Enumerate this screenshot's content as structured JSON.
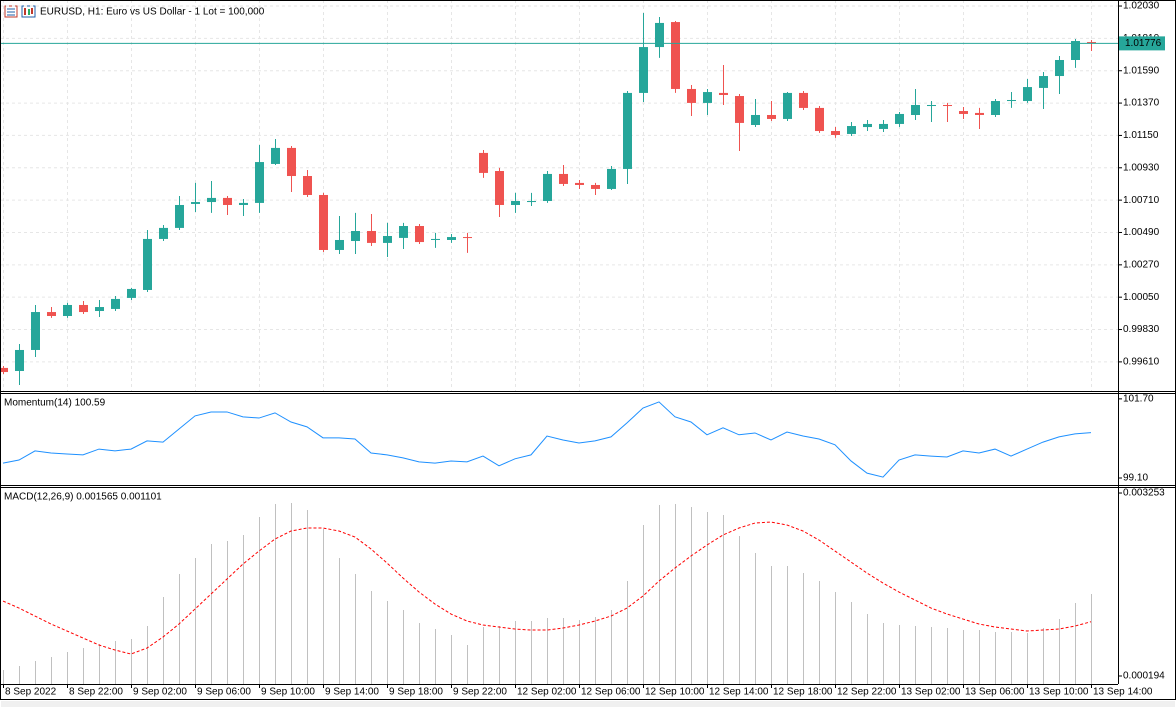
{
  "chart_data": [
    {
      "type": "candlestick",
      "title": "EURUSD, H1:  Euro vs US Dollar - 1 Lot = 100,000",
      "categories": [
        "8 Sep 2022",
        null,
        null,
        null,
        "8 Sep 22:00",
        null,
        null,
        null,
        "9 Sep 02:00",
        null,
        null,
        null,
        "9 Sep 06:00",
        null,
        null,
        null,
        "9 Sep 10:00",
        null,
        null,
        null,
        "9 Sep 14:00",
        null,
        null,
        null,
        "9 Sep 18:00",
        null,
        null,
        null,
        "9 Sep 22:00",
        null,
        null,
        null,
        "12 Sep 02:00",
        null,
        null,
        null,
        "12 Sep 06:00",
        null,
        null,
        null,
        "12 Sep 10:00",
        null,
        null,
        null,
        "12 Sep 14:00",
        null,
        null,
        null,
        "12 Sep 18:00",
        null,
        null,
        null,
        "12 Sep 22:00",
        null,
        null,
        null,
        "13 Sep 02:00",
        null,
        null,
        null,
        "13 Sep 06:00",
        null,
        null,
        null,
        "13 Sep 10:00",
        null,
        null,
        null,
        "13 Sep 14:00"
      ],
      "open": [
        0.99569,
        0.99548,
        0.99691,
        0.99949,
        0.99922,
        0.99997,
        0.99956,
        0.9997,
        1.00045,
        1.00099,
        1.00446,
        1.00521,
        1.00684,
        1.00697,
        1.00725,
        1.00677,
        1.00691,
        1.00956,
        1.01065,
        1.00874,
        1.00745,
        1.00371,
        1.00432,
        1.005,
        1.00419,
        1.00453,
        1.00534,
        1.00439,
        1.00439,
        1.00459,
        1.01031,
        1.00908,
        1.00677,
        1.00697,
        1.00704,
        1.00888,
        1.00827,
        1.00813,
        1.00786,
        1.00922,
        1.01439,
        1.01751,
        1.01921,
        1.01466,
        1.01371,
        1.01439,
        1.01418,
        1.01221,
        1.01289,
        1.01262,
        1.01439,
        1.01337,
        1.0118,
        1.0116,
        1.01207,
        1.01194,
        1.01228,
        1.01289,
        1.0135,
        1.01357,
        1.01316,
        1.01303,
        1.01289,
        1.01384,
        1.01384,
        1.01473,
        1.01554,
        1.01663,
        1.01785
      ],
      "high": [
        0.99582,
        0.99732,
        0.99997,
        0.99983,
        1.00011,
        1.00024,
        1.00031,
        1.00058,
        1.00113,
        1.00507,
        1.00541,
        1.00738,
        1.00827,
        1.0084,
        1.00738,
        1.00718,
        1.01085,
        1.01126,
        1.01078,
        1.00915,
        1.00759,
        1.00602,
        1.00623,
        1.00616,
        1.00555,
        1.00555,
        1.00548,
        1.00487,
        1.0048,
        1.00487,
        1.01051,
        1.00929,
        1.00759,
        1.00759,
        1.00908,
        1.00949,
        1.00847,
        1.00827,
        1.00942,
        1.01452,
        1.01983,
        1.01955,
        1.01928,
        1.01493,
        1.01466,
        1.01629,
        1.01432,
        1.01398,
        1.01384,
        1.01445,
        1.01452,
        1.0135,
        1.01207,
        1.01241,
        1.01255,
        1.01255,
        1.01309,
        1.01466,
        1.01384,
        1.01371,
        1.01343,
        1.01337,
        1.01398,
        1.01445,
        1.01534,
        1.01581,
        1.0169,
        1.01806,
        1.01799
      ],
      "low": [
        0.99528,
        0.99453,
        0.99643,
        0.99909,
        0.99909,
        0.99936,
        0.99915,
        0.99956,
        1.00031,
        1.00085,
        1.00432,
        1.00507,
        1.00629,
        1.00623,
        1.00609,
        1.00602,
        1.00623,
        1.00949,
        1.00765,
        1.00731,
        1.00357,
        1.00344,
        1.00344,
        1.00398,
        1.00323,
        1.00378,
        1.00412,
        1.00385,
        1.00419,
        1.00351,
        1.00861,
        1.00595,
        1.00623,
        1.0067,
        1.00691,
        1.00806,
        1.00786,
        1.00745,
        1.00779,
        1.0082,
        1.01377,
        1.01677,
        1.01439,
        1.01282,
        1.01289,
        1.01357,
        1.01044,
        1.01207,
        1.01248,
        1.01248,
        1.01323,
        1.01167,
        1.01133,
        1.01146,
        1.0118,
        1.01173,
        1.01207,
        1.01255,
        1.01241,
        1.01241,
        1.01262,
        1.01194,
        1.01275,
        1.01337,
        1.01371,
        1.0133,
        1.01432,
        1.01609,
        1.01724
      ],
      "close": [
        0.99541,
        0.99691,
        0.99949,
        0.99922,
        0.99997,
        0.99949,
        0.99983,
        1.00038,
        1.00106,
        1.00446,
        1.00521,
        1.00677,
        1.00697,
        1.00725,
        1.00677,
        1.00691,
        1.00969,
        1.01065,
        1.00874,
        1.00745,
        1.00371,
        1.00439,
        1.005,
        1.00419,
        1.00466,
        1.00534,
        1.00425,
        1.00446,
        1.00459,
        1.00453,
        1.00895,
        1.00677,
        1.00704,
        1.00704,
        1.00888,
        1.0082,
        1.00813,
        1.00786,
        1.00922,
        1.01439,
        1.01751,
        1.01915,
        1.01466,
        1.01371,
        1.01445,
        1.01425,
        1.01235,
        1.01289,
        1.01262,
        1.01439,
        1.01337,
        1.0118,
        1.01153,
        1.01214,
        1.01228,
        1.01228,
        1.01296,
        1.01357,
        1.01357,
        1.0135,
        1.01296,
        1.01289,
        1.01384,
        1.01391,
        1.01479,
        1.01554,
        1.01663,
        1.01792,
        1.01776
      ],
      "up_color": "#26a69a",
      "down_color": "#ef5350",
      "current_price": 1.01776,
      "price_line_color": "#26a69a",
      "ylim": [
        0.99412,
        1.02071
      ],
      "yticks": [
        {
          "value": 1.0203,
          "label": "1.02030"
        },
        {
          "value": 1.0181,
          "label": "1.01810"
        },
        {
          "value": 1.0159,
          "label": "1.01590"
        },
        {
          "value": 1.0137,
          "label": "1.01370"
        },
        {
          "value": 1.0115,
          "label": "1.01150"
        },
        {
          "value": 1.0093,
          "label": "1.00930"
        },
        {
          "value": 1.0071,
          "label": "1.00710"
        },
        {
          "value": 1.0049,
          "label": "1.00490"
        },
        {
          "value": 1.0027,
          "label": "1.00270"
        },
        {
          "value": 1.0005,
          "label": "1.00050"
        },
        {
          "value": 0.9983,
          "label": "0.99830"
        },
        {
          "value": 0.9961,
          "label": "0.99610"
        }
      ],
      "grid": true
    },
    {
      "type": "line",
      "title": "Momentum(14) 100.59",
      "values": [
        99.59,
        99.69,
        99.99,
        99.92,
        99.89,
        99.86,
        100.05,
        99.99,
        100.05,
        100.32,
        100.28,
        100.71,
        101.14,
        101.27,
        101.27,
        101.11,
        101.07,
        101.24,
        100.94,
        100.78,
        100.42,
        100.42,
        100.38,
        99.92,
        99.86,
        99.76,
        99.63,
        99.59,
        99.66,
        99.63,
        99.82,
        99.5,
        99.73,
        99.86,
        100.48,
        100.35,
        100.25,
        100.32,
        100.45,
        100.91,
        101.4,
        101.6,
        101.11,
        100.94,
        100.52,
        100.75,
        100.52,
        100.58,
        100.35,
        100.61,
        100.48,
        100.38,
        100.19,
        99.66,
        99.26,
        99.13,
        99.69,
        99.86,
        99.82,
        99.79,
        99.99,
        99.92,
        100.05,
        99.82,
        100.05,
        100.28,
        100.45,
        100.55,
        100.59
      ],
      "color": "#1e90ff",
      "ylim": [
        98.87,
        101.86
      ],
      "yticks": [
        {
          "value": 101.7,
          "label": "101.70"
        },
        {
          "value": 99.1,
          "label": "99.10"
        }
      ]
    },
    {
      "type": "macd",
      "title": "MACD(12,26,9) 0.001565 0.001101",
      "histogram": [
        0.000294,
        0.00036,
        0.000444,
        0.000511,
        0.000595,
        0.000661,
        0.000728,
        0.000778,
        0.000812,
        0.001029,
        0.001514,
        0.001899,
        0.002166,
        0.0024,
        0.00245,
        0.002551,
        0.002852,
        0.003069,
        0.003086,
        0.002969,
        0.002651,
        0.002166,
        0.001899,
        0.001614,
        0.001447,
        0.001297,
        0.001079,
        0.000979,
        0.000879,
        0.000712,
        0.001013,
        0.001029,
        0.001113,
        0.001113,
        0.001163,
        0.001163,
        0.00113,
        0.00118,
        0.001297,
        0.001782,
        0.002718,
        0.003052,
        0.003069,
        0.003019,
        0.002935,
        0.002885,
        0.002534,
        0.00225,
        0.002032,
        0.002032,
        0.001915,
        0.001782,
        0.001598,
        0.001431,
        0.00123,
        0.001079,
        0.001046,
        0.001029,
        0.001013,
        0.000996,
        0.000962,
        0.000962,
        0.000929,
        0.000929,
        0.000912,
        0.000996,
        0.001146,
        0.001414,
        0.001565
      ],
      "signal": [
        0.001447,
        0.00133,
        0.001196,
        0.001063,
        0.000946,
        0.000829,
        0.000712,
        0.000628,
        0.000561,
        0.000661,
        0.000845,
        0.001063,
        0.001313,
        0.001564,
        0.001815,
        0.002066,
        0.002283,
        0.002484,
        0.002618,
        0.002668,
        0.002668,
        0.002618,
        0.002517,
        0.002317,
        0.002083,
        0.001832,
        0.001598,
        0.001397,
        0.00123,
        0.001113,
        0.001046,
        0.001013,
        0.000979,
        0.000962,
        0.000962,
        0.000996,
        0.001046,
        0.001113,
        0.001196,
        0.00133,
        0.001531,
        0.001782,
        0.001999,
        0.0022,
        0.002384,
        0.002551,
        0.002668,
        0.002751,
        0.002768,
        0.002718,
        0.002618,
        0.002467,
        0.002283,
        0.002099,
        0.001915,
        0.001748,
        0.001598,
        0.001464,
        0.00133,
        0.00123,
        0.001146,
        0.001063,
        0.001013,
        0.000979,
        0.000946,
        0.000962,
        0.000979,
        0.001029,
        0.001101
      ],
      "histogram_color": "#c0c0c0",
      "signal_color": "#ff0000",
      "ylim": [
        6e-05,
        0.003337
      ],
      "yticks": [
        0.003253,
        0.000194
      ]
    }
  ]
}
